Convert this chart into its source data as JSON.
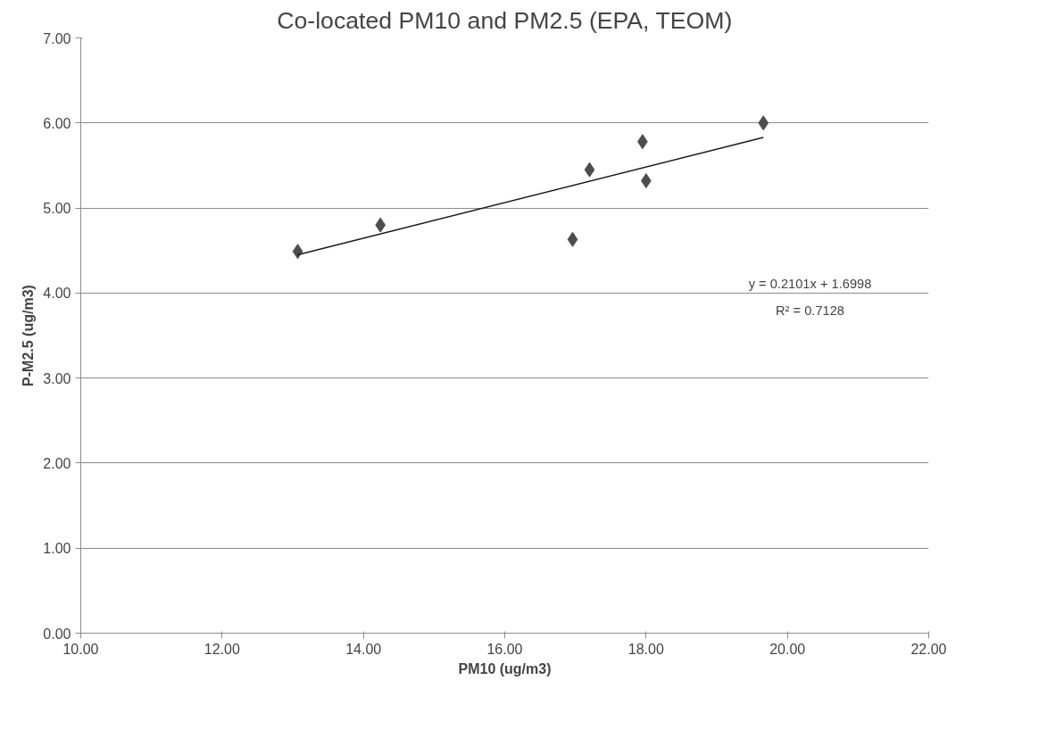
{
  "chart_data": {
    "type": "scatter",
    "title": "Co-located PM10 and PM2.5 (EPA, TEOM)",
    "xlabel": "PM10 (ug/m3)",
    "ylabel": "P-M2.5 (ug/m3)",
    "x": [
      13.07,
      14.24,
      16.96,
      17.2,
      17.95,
      18.0,
      19.66
    ],
    "series": [
      {
        "color": "#4d4d4d",
        "values": [
          4.49,
          4.8,
          4.63,
          5.45,
          5.78,
          5.32,
          6.0
        ],
        "marker": "diamond"
      },
      {
        "type": "line",
        "color": "#1a1a1a",
        "x": [
          13.07,
          19.66
        ],
        "values": [
          4.45,
          5.83
        ],
        "line_style": "solid"
      }
    ],
    "xlim": [
      10,
      22
    ],
    "ylim": [
      0,
      7
    ],
    "xticks": [
      {
        "value": 10,
        "label": "10.00"
      },
      {
        "value": 12,
        "label": "12.00"
      },
      {
        "value": 14,
        "label": "14.00"
      },
      {
        "value": 16,
        "label": "16.00"
      },
      {
        "value": 18,
        "label": "18.00"
      },
      {
        "value": 20,
        "label": "20.00"
      },
      {
        "value": 22,
        "label": "22.00"
      }
    ],
    "yticks": [
      {
        "value": 0,
        "label": "0.00"
      },
      {
        "value": 1,
        "label": "1.00"
      },
      {
        "value": 2,
        "label": "2.00"
      },
      {
        "value": 3,
        "label": "3.00"
      },
      {
        "value": 4,
        "label": "4.00"
      },
      {
        "value": 5,
        "label": "5.00"
      },
      {
        "value": 6,
        "label": "6.00"
      },
      {
        "value": 7,
        "label": "7.00"
      }
    ],
    "annotations": [
      "y = 0.2101x + 1.6998",
      "R² = 0.7128"
    ],
    "grid": "y"
  }
}
